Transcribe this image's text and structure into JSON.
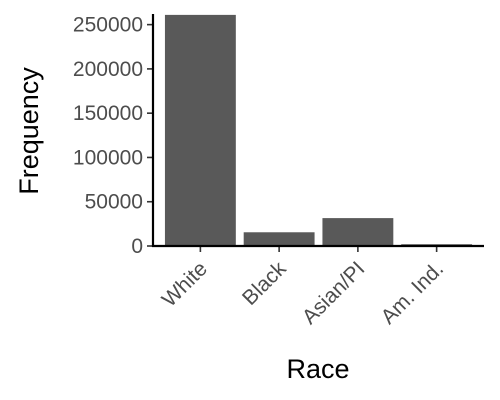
{
  "chart_data": {
    "type": "bar",
    "title": "",
    "xlabel": "Race",
    "ylabel": "Frequency",
    "categories": [
      "White",
      "Black",
      "Asian/PI",
      "Am. Ind."
    ],
    "values": [
      261000,
      15500,
      31500,
      2000
    ],
    "ylim": [
      0,
      262000
    ],
    "yticks": [
      0,
      50000,
      100000,
      150000,
      200000,
      250000
    ],
    "ytick_labels": [
      "0",
      "50000",
      "100000",
      "150000",
      "200000",
      "250000"
    ],
    "bar_color": "#595959",
    "grid": false,
    "legend": "none"
  }
}
